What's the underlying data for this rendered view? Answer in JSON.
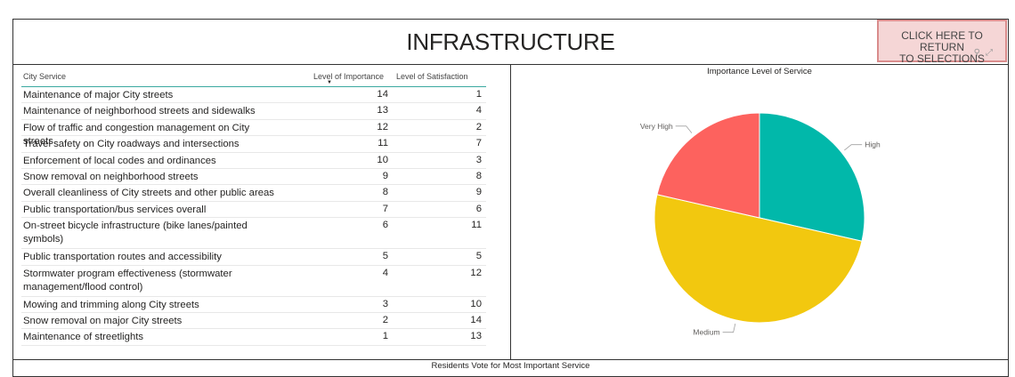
{
  "header": {
    "title": "INFRASTRUCTURE",
    "return_button_line1": "CLICK HERE TO RETURN",
    "return_button_line2": "TO SELECTIONS",
    "filter_icon": "filter-icon",
    "focus_icon": "focus-mode-icon"
  },
  "table": {
    "columns": [
      "City Service",
      "Level of Importance",
      "Level of Satisfaction"
    ],
    "sort_indicator": "▼",
    "rows": [
      {
        "service": "Maintenance of major City streets",
        "importance": "14",
        "satisfaction": "1"
      },
      {
        "service": "Maintenance of neighborhood streets and sidewalks",
        "importance": "13",
        "satisfaction": "4"
      },
      {
        "service": "Flow of traffic and congestion management on City streets",
        "importance": "12",
        "satisfaction": "2"
      },
      {
        "service": "Travel safety on City roadways and intersections",
        "importance": "11",
        "satisfaction": "7"
      },
      {
        "service": "Enforcement of local codes and ordinances",
        "importance": "10",
        "satisfaction": "3"
      },
      {
        "service": "Snow removal on neighborhood streets",
        "importance": "9",
        "satisfaction": "8"
      },
      {
        "service": "Overall cleanliness of City streets and other public areas",
        "importance": "8",
        "satisfaction": "9"
      },
      {
        "service": "Public transportation/bus services overall",
        "importance": "7",
        "satisfaction": "6"
      },
      {
        "service": "On-street bicycle infrastructure (bike lanes/painted symbols)",
        "importance": "6",
        "satisfaction": "11"
      },
      {
        "service": "Public transportation routes and accessibility",
        "importance": "5",
        "satisfaction": "5"
      },
      {
        "service": "Stormwater program effectiveness (stormwater management/flood control)",
        "importance": "4",
        "satisfaction": "12"
      },
      {
        "service": "Mowing and trimming along City streets",
        "importance": "3",
        "satisfaction": "10"
      },
      {
        "service": "Snow removal on major City streets",
        "importance": "2",
        "satisfaction": "14"
      },
      {
        "service": "Maintenance of streetlights",
        "importance": "1",
        "satisfaction": "13"
      }
    ]
  },
  "chart_data": {
    "type": "pie",
    "title": "Importance Level of Service",
    "slices": [
      {
        "label": "High",
        "value": 4,
        "color": "#01B8AA"
      },
      {
        "label": "Medium",
        "value": 7,
        "color": "#F2C80F"
      },
      {
        "label": "Very High",
        "value": 3,
        "color": "#FD625E"
      }
    ]
  },
  "bottom": {
    "title": "Residents Vote for Most Important Service"
  }
}
